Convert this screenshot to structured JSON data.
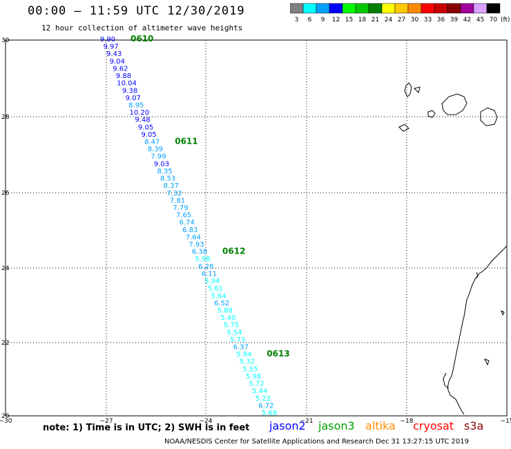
{
  "title": "00:00 – 11:59 UTC 12/30/2019",
  "subtitle": "12 hour collection of altimeter wave heights",
  "legend": {
    "unit": "(ft)",
    "bins": [
      {
        "label": "3",
        "color": "#808080"
      },
      {
        "label": "6",
        "color": "#00ffff"
      },
      {
        "label": "9",
        "color": "#00a0ff"
      },
      {
        "label": "12",
        "color": "#0000ff"
      },
      {
        "label": "15",
        "color": "#00ff00"
      },
      {
        "label": "18",
        "color": "#00c800"
      },
      {
        "label": "21",
        "color": "#008000"
      },
      {
        "label": "24",
        "color": "#ffff00"
      },
      {
        "label": "27",
        "color": "#ffc800"
      },
      {
        "label": "30",
        "color": "#ff8c00"
      },
      {
        "label": "33",
        "color": "#ff0000"
      },
      {
        "label": "36",
        "color": "#c80000"
      },
      {
        "label": "39",
        "color": "#8b0000"
      },
      {
        "label": "42",
        "color": "#a000a0"
      },
      {
        "label": "45",
        "color": "#d8a0ff"
      },
      {
        "label": "70",
        "color": "#000000"
      }
    ]
  },
  "axes": {
    "lat_labels": [
      "30",
      "28",
      "26",
      "24",
      "22",
      "20"
    ],
    "lon_labels": [
      "−30",
      "−27",
      "−24",
      "−21",
      "−18",
      "−15"
    ]
  },
  "track": {
    "readings": [
      "9.90",
      "9.97",
      "9.43",
      "9.04",
      "9.62",
      "9.88",
      "10.04",
      "9.38",
      "9.07",
      "8.95",
      "10.20",
      "9.48",
      "9.05",
      "9.05",
      "8.47",
      "8.39",
      "7.99",
      "9.03",
      "8.35",
      "8.53",
      "8.37",
      "7.32",
      "7.81",
      "7.79",
      "7.65",
      "6.74",
      "6.83",
      "7.64",
      "7.93",
      "6.38",
      "5.98",
      "6.28",
      "6.11",
      "5.94",
      "5.61",
      "5.64",
      "6.52",
      "5.88",
      "5.40",
      "5.75",
      "5.54",
      "5.73",
      "6.37",
      "5.94",
      "5.32",
      "5.55",
      "5.98",
      "5.72",
      "5.44",
      "5.22",
      "6.72",
      "5.68"
    ],
    "time_labels": [
      {
        "text": "0610",
        "after_index": 0
      },
      {
        "text": "0611",
        "after_index": 14
      },
      {
        "text": "0612",
        "after_index": 29
      },
      {
        "text": "0613",
        "after_index": 43
      }
    ]
  },
  "note": "note: 1) Time is in UTC; 2) SWH is in feet",
  "satellites": [
    {
      "name": "jason2",
      "color": "#0000ff"
    },
    {
      "name": "jason3",
      "color": "#00a000"
    },
    {
      "name": "altika",
      "color": "#ff8c00"
    },
    {
      "name": "cryosat",
      "color": "#ff0000"
    },
    {
      "name": "s3a",
      "color": "#8b0000"
    }
  ],
  "credit": "NOAA/NESDIS Center for Satellite Applications and Research     Dec 31 13:27:15 UTC 2019"
}
